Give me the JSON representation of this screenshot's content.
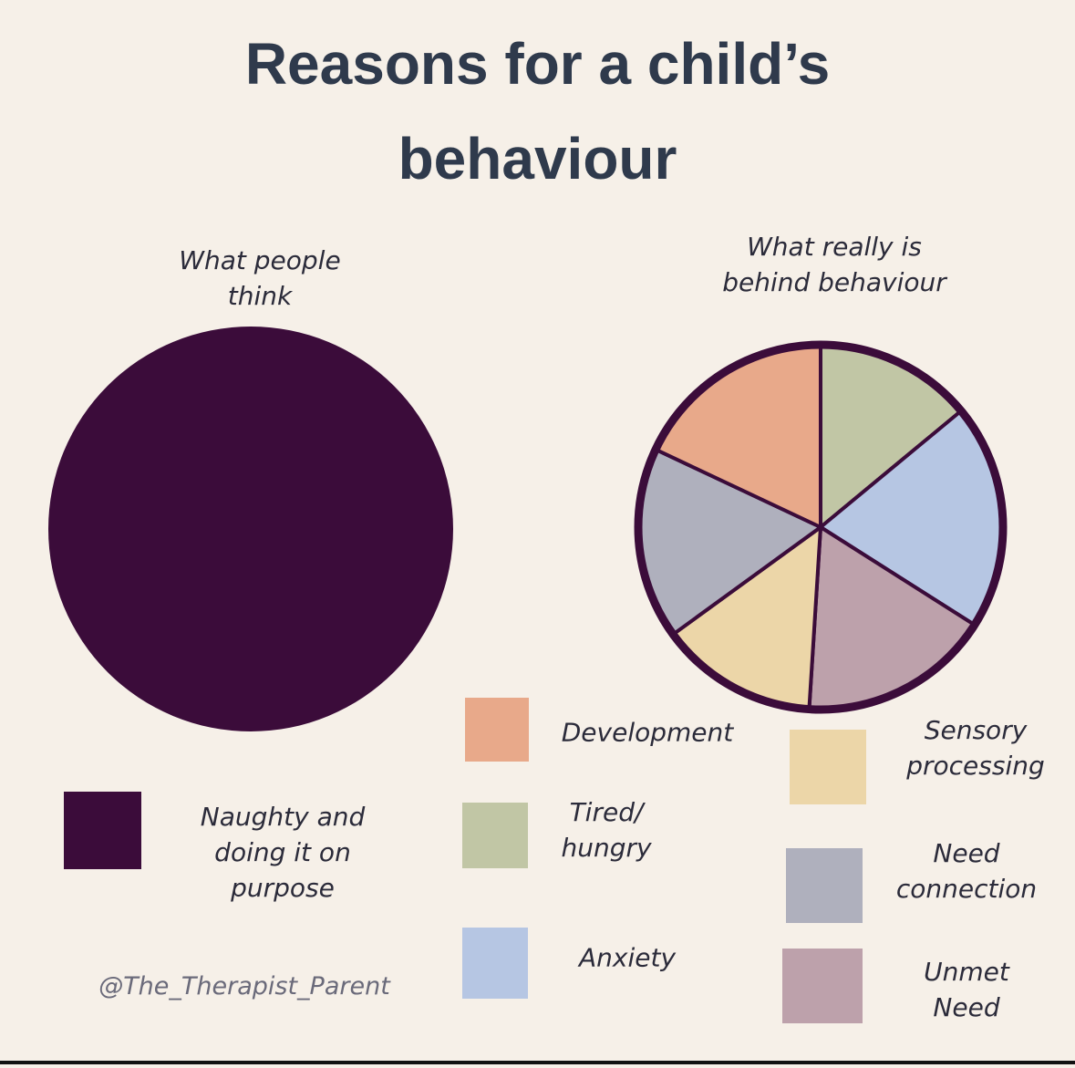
{
  "title": "Reasons for a child’s\nbehaviour",
  "credit": "@The_Therapist_Parent",
  "chart_data": [
    {
      "type": "pie",
      "title": "What people\nthink",
      "categories": [
        "Naughty and\ndoing it on\npurpose"
      ],
      "values": [
        100
      ],
      "colors": [
        "#3b0c3a"
      ]
    },
    {
      "type": "pie",
      "title": "What really is\nbehind behaviour",
      "categories": [
        "Tired/\nhungry",
        "Anxiety",
        "Unmet\nNeed",
        "Sensory\nprocessing",
        "Need\nconnection",
        "Development"
      ],
      "values": [
        14,
        20,
        17,
        14,
        17,
        18
      ],
      "colors": [
        "#c1c6a5",
        "#b6c6e3",
        "#bda1ab",
        "#ecd6a8",
        "#afb0bd",
        "#e8a98a"
      ],
      "border_color": "#3b0c3a"
    }
  ]
}
